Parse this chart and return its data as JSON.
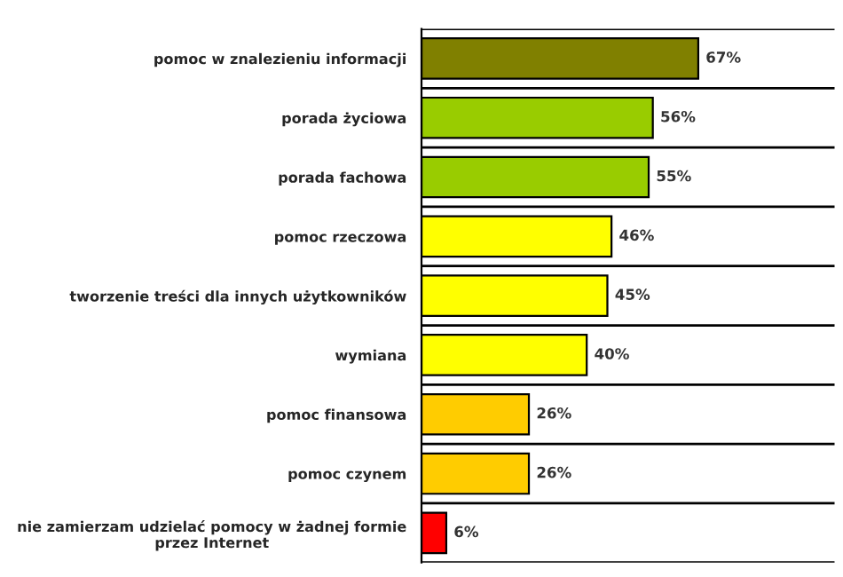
{
  "chart_data": {
    "type": "bar",
    "orientation": "horizontal",
    "categories": [
      "pomoc w znalezieniu informacji",
      "porada życiowa",
      "porada fachowa",
      "pomoc rzeczowa",
      "tworzenie treści dla innych użytkowników",
      "wymiana",
      "pomoc finansowa",
      "pomoc czynem",
      "nie zamierzam udzielać pomocy w żadnej formie\nprzez Internet"
    ],
    "values": [
      67,
      56,
      55,
      46,
      45,
      40,
      26,
      26,
      6
    ],
    "value_labels": [
      "67%",
      "56%",
      "55%",
      "46%",
      "45%",
      "40%",
      "26%",
      "26%",
      "6%"
    ],
    "colors": [
      "#808000",
      "#99cc00",
      "#99cc00",
      "#ffff00",
      "#ffff00",
      "#ffff00",
      "#ffcc00",
      "#ffcc00",
      "#ff0000"
    ],
    "xlim": [
      0,
      100
    ],
    "tick_labels": "y",
    "grid": "y",
    "legend": false
  }
}
